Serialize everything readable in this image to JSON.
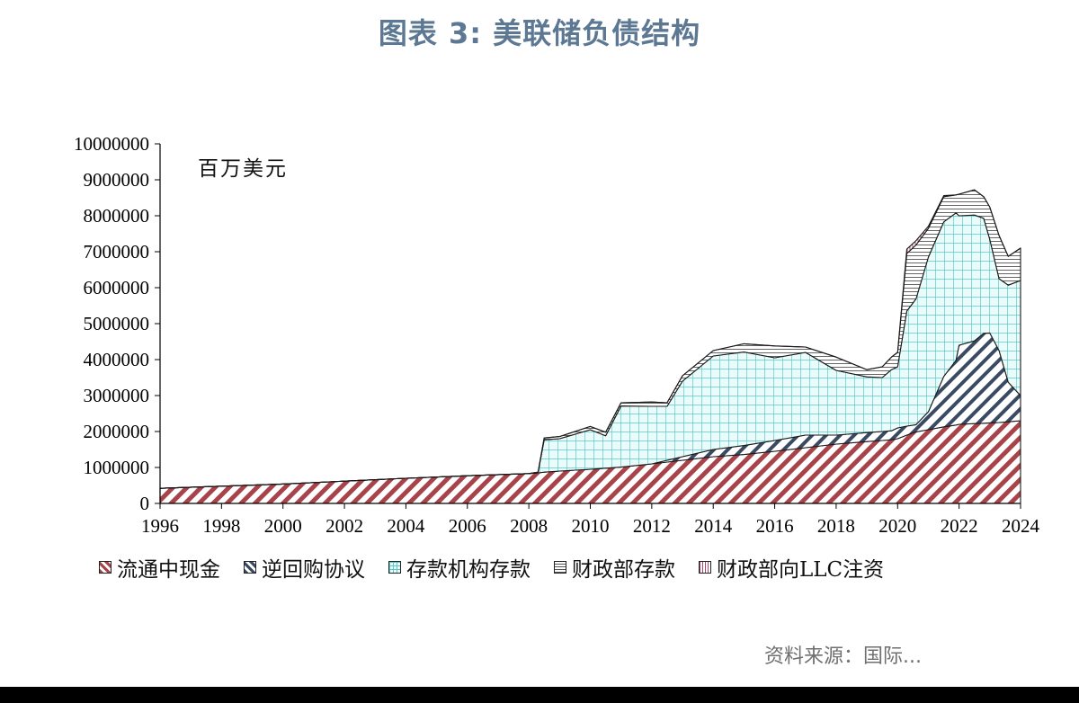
{
  "title": "图表 3:  美联储负债结构",
  "source": "资料来源：国际...",
  "colors": {
    "title": "#5d7893",
    "currency": "#a8434a",
    "repo": "#3a4a63",
    "reserves": "#5ec9c4",
    "tga": "#444444",
    "llc": "#b04a6a"
  },
  "chart_data": {
    "type": "area",
    "stacked": true,
    "unit_label": "百万美元",
    "xlim": [
      1996,
      2024
    ],
    "ylim": [
      0,
      10000000
    ],
    "x_ticks": [
      "1996",
      "1998",
      "2000",
      "2002",
      "2004",
      "2006",
      "2008",
      "2010",
      "2012",
      "2014",
      "2016",
      "2018",
      "2020",
      "2022",
      "2024"
    ],
    "y_ticks": [
      "0",
      "1000000",
      "2000000",
      "3000000",
      "4000000",
      "5000000",
      "6000000",
      "7000000",
      "8000000",
      "9000000",
      "10000000"
    ],
    "grid": false,
    "legend_position": "bottom",
    "x": [
      1996,
      1998,
      2000,
      2002,
      2004,
      2006,
      2008,
      2008.3,
      2008.5,
      2009,
      2010,
      2010.5,
      2011,
      2012,
      2012.5,
      2013,
      2014,
      2015,
      2016,
      2017,
      2018,
      2019,
      2019.5,
      2019.8,
      2020,
      2020.3,
      2020.6,
      2021,
      2021.5,
      2021.9,
      2022,
      2022.5,
      2022.8,
      2023,
      2023.3,
      2023.6,
      2024
    ],
    "series": [
      {
        "name": "流通中现金",
        "values": [
          420000,
          480000,
          540000,
          620000,
          700000,
          770000,
          830000,
          850000,
          870000,
          900000,
          950000,
          980000,
          1010000,
          1100000,
          1150000,
          1200000,
          1300000,
          1360000,
          1450000,
          1550000,
          1650000,
          1720000,
          1750000,
          1770000,
          1800000,
          1900000,
          1990000,
          2050000,
          2130000,
          2180000,
          2200000,
          2220000,
          2230000,
          2240000,
          2250000,
          2270000,
          2300000
        ]
      },
      {
        "name": "逆回购协议",
        "values": [
          0,
          0,
          0,
          0,
          0,
          0,
          0,
          0,
          0,
          0,
          0,
          0,
          0,
          0,
          50000,
          100000,
          200000,
          250000,
          300000,
          350000,
          250000,
          250000,
          250000,
          250000,
          300000,
          250000,
          200000,
          500000,
          1400000,
          1800000,
          2200000,
          2300000,
          2500000,
          2500000,
          2000000,
          1100000,
          700000
        ]
      },
      {
        "name": "存款机构存款",
        "values": [
          0,
          0,
          0,
          0,
          0,
          0,
          0,
          10000,
          900000,
          900000,
          1100000,
          900000,
          1700000,
          1600000,
          1500000,
          2100000,
          2600000,
          2600000,
          2300000,
          2300000,
          1800000,
          1550000,
          1500000,
          1700000,
          1700000,
          3200000,
          3500000,
          4300000,
          4300000,
          4100000,
          3600000,
          3500000,
          3200000,
          2600000,
          2000000,
          2700000,
          3200000
        ]
      },
      {
        "name": "财政部存款",
        "values": [
          0,
          0,
          0,
          0,
          0,
          0,
          0,
          10000,
          50000,
          60000,
          90000,
          100000,
          90000,
          120000,
          100000,
          150000,
          150000,
          230000,
          330000,
          150000,
          370000,
          200000,
          300000,
          350000,
          400000,
          1600000,
          1500000,
          800000,
          700000,
          500000,
          600000,
          700000,
          600000,
          900000,
          1200000,
          800000,
          900000
        ]
      },
      {
        "name": "财政部向LLC注资",
        "values": [
          0,
          0,
          0,
          0,
          0,
          0,
          0,
          0,
          0,
          0,
          0,
          0,
          0,
          0,
          0,
          0,
          0,
          0,
          0,
          0,
          0,
          0,
          0,
          0,
          0,
          120000,
          120000,
          60000,
          30000,
          0,
          0,
          0,
          0,
          0,
          0,
          0,
          0
        ]
      }
    ]
  }
}
